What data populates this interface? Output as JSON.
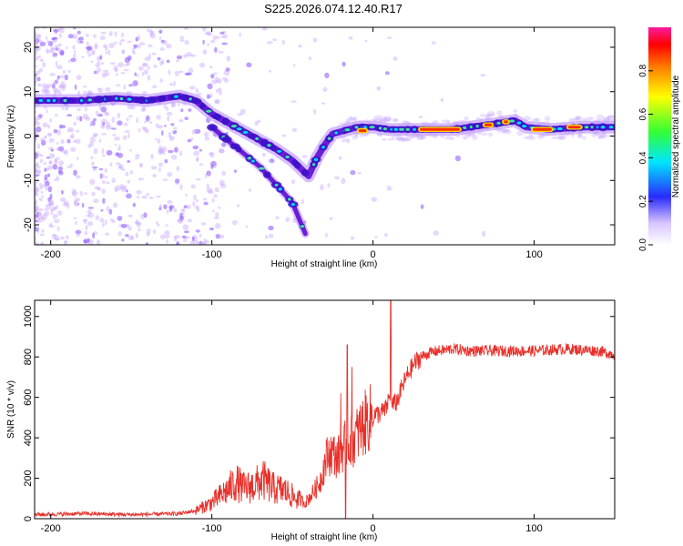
{
  "title": "S225.2026.074.12.40.R17",
  "colors": {
    "snr_line": "#e8302a",
    "signal_blob": "#6a1fd6",
    "noise": "#c9a8ff",
    "axis": "#000000"
  },
  "chart_data": [
    {
      "type": "heatmap",
      "name": "spectrogram",
      "title": "S225.2026.074.12.40.R17",
      "xlabel": "Height of straight line (km)",
      "ylabel": "Frequency (Hz)",
      "xlim": [
        -210,
        150
      ],
      "ylim": [
        -24.5,
        24.5
      ],
      "xticks": [
        -200,
        -100,
        0,
        100
      ],
      "xtick_labels": [
        "-200",
        "-100",
        "0",
        "100"
      ],
      "yticks": [
        -20,
        -10,
        0,
        10,
        20
      ],
      "ytick_labels": [
        "-20",
        "-10",
        "0",
        "10",
        "20"
      ],
      "ridges": [
        {
          "name": "main-trace",
          "x": [
            -210,
            -180,
            -160,
            -140,
            -120,
            -110,
            -100,
            -90,
            -80,
            -70,
            -60,
            -50,
            -40,
            -35,
            -30,
            -25,
            -20,
            -10,
            0,
            10,
            30,
            50,
            70,
            80,
            88,
            95,
            110,
            130,
            150
          ],
          "y": [
            8,
            8,
            8.5,
            8,
            9,
            8,
            5,
            3,
            1,
            -1,
            -3,
            -5.5,
            -9,
            -5,
            -2,
            0.5,
            1,
            2,
            2,
            1.5,
            1.5,
            1.5,
            2.5,
            3,
            3.5,
            2,
            1.5,
            2,
            2
          ]
        },
        {
          "name": "lower-branch",
          "x": [
            -100,
            -90,
            -80,
            -70,
            -60,
            -50,
            -42
          ],
          "y": [
            2,
            -1,
            -4,
            -7,
            -11,
            -15,
            -22
          ]
        }
      ],
      "colorbar": {
        "label": "Normalized spectral amplitude",
        "ticks": [
          0.0,
          0.2,
          0.4,
          0.6,
          0.8
        ],
        "tick_labels": [
          "0.0",
          "0.2",
          "0.4",
          "0.6",
          "0.8"
        ],
        "range": [
          0,
          1
        ]
      }
    },
    {
      "type": "line",
      "name": "snr",
      "xlabel": "Height of straight line (km)",
      "ylabel": "SNR (10 * v/v)",
      "xlim": [
        -210,
        150
      ],
      "ylim": [
        0,
        1080
      ],
      "xticks": [
        -200,
        -100,
        0,
        100
      ],
      "xtick_labels": [
        "-200",
        "-100",
        "0",
        "100"
      ],
      "yticks": [
        0,
        200,
        400,
        600,
        800,
        1000
      ],
      "ytick_labels": [
        "0",
        "200",
        "400",
        "600",
        "800",
        "1000"
      ],
      "series": [
        {
          "name": "SNR",
          "x": [
            -210,
            -180,
            -150,
            -120,
            -110,
            -100,
            -92,
            -85,
            -80,
            -75,
            -68,
            -62,
            -55,
            -48,
            -42,
            -38,
            -33,
            -29,
            -26,
            -22,
            -18,
            -15,
            -12,
            -8,
            -4,
            0,
            4,
            8,
            10,
            12,
            15,
            18,
            22,
            26,
            30,
            35,
            40,
            50,
            60,
            80,
            100,
            120,
            140,
            150
          ],
          "y": [
            20,
            25,
            20,
            25,
            40,
            80,
            130,
            180,
            150,
            160,
            190,
            150,
            140,
            100,
            80,
            120,
            180,
            300,
            330,
            300,
            360,
            380,
            390,
            440,
            480,
            510,
            520,
            540,
            600,
            560,
            580,
            650,
            720,
            770,
            800,
            820,
            830,
            840,
            830,
            830,
            830,
            840,
            830,
            810
          ]
        }
      ],
      "spikes": [
        {
          "x": 11,
          "y": 1080
        },
        {
          "x": -16,
          "y": 860
        },
        {
          "x": -13,
          "y": 750
        },
        {
          "x": -20,
          "y": 620
        },
        {
          "x": -17,
          "y": 0
        }
      ]
    }
  ]
}
